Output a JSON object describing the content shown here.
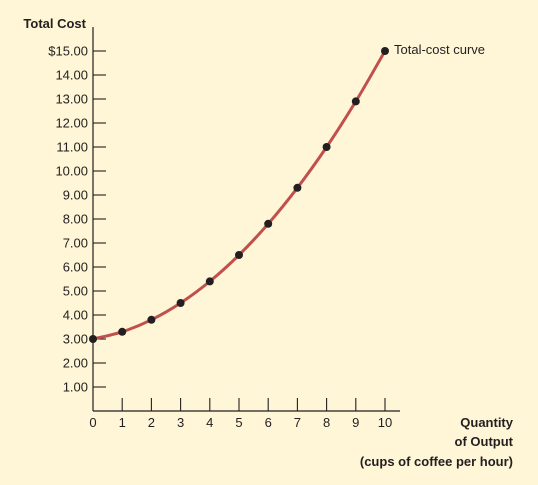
{
  "chart_data": {
    "type": "line",
    "ylabel": "Total Cost",
    "xlabel_lines": [
      "Quantity",
      "of Output",
      "(cups of coffee per hour)"
    ],
    "annotation": "Total-cost curve",
    "x": [
      0,
      1,
      2,
      3,
      4,
      5,
      6,
      7,
      8,
      9,
      10
    ],
    "y": [
      3.0,
      3.3,
      3.8,
      4.5,
      5.4,
      6.5,
      7.8,
      9.3,
      11.0,
      12.9,
      15.0
    ],
    "xlim": [
      0,
      10
    ],
    "ylim": [
      0,
      15
    ],
    "x_ticks": [
      "0",
      "1",
      "2",
      "3",
      "4",
      "5",
      "6",
      "7",
      "8",
      "9",
      "10"
    ],
    "y_ticks": [
      {
        "value": 1,
        "label": "1.00"
      },
      {
        "value": 2,
        "label": "2.00"
      },
      {
        "value": 3,
        "label": "3.00"
      },
      {
        "value": 4,
        "label": "4.00"
      },
      {
        "value": 5,
        "label": "5.00"
      },
      {
        "value": 6,
        "label": "6.00"
      },
      {
        "value": 7,
        "label": "7.00"
      },
      {
        "value": 8,
        "label": "8.00"
      },
      {
        "value": 9,
        "label": "9.00"
      },
      {
        "value": 10,
        "label": "10.00"
      },
      {
        "value": 11,
        "label": "11.00"
      },
      {
        "value": 12,
        "label": "12.00"
      },
      {
        "value": 13,
        "label": "13.00"
      },
      {
        "value": 14,
        "label": "14.00"
      },
      {
        "value": 15,
        "label": "$15.00"
      }
    ],
    "grid": false,
    "colors": {
      "background": "#fef6d6",
      "curve": "#c0504d",
      "points": "#231f20",
      "axes": "#231f20"
    }
  }
}
